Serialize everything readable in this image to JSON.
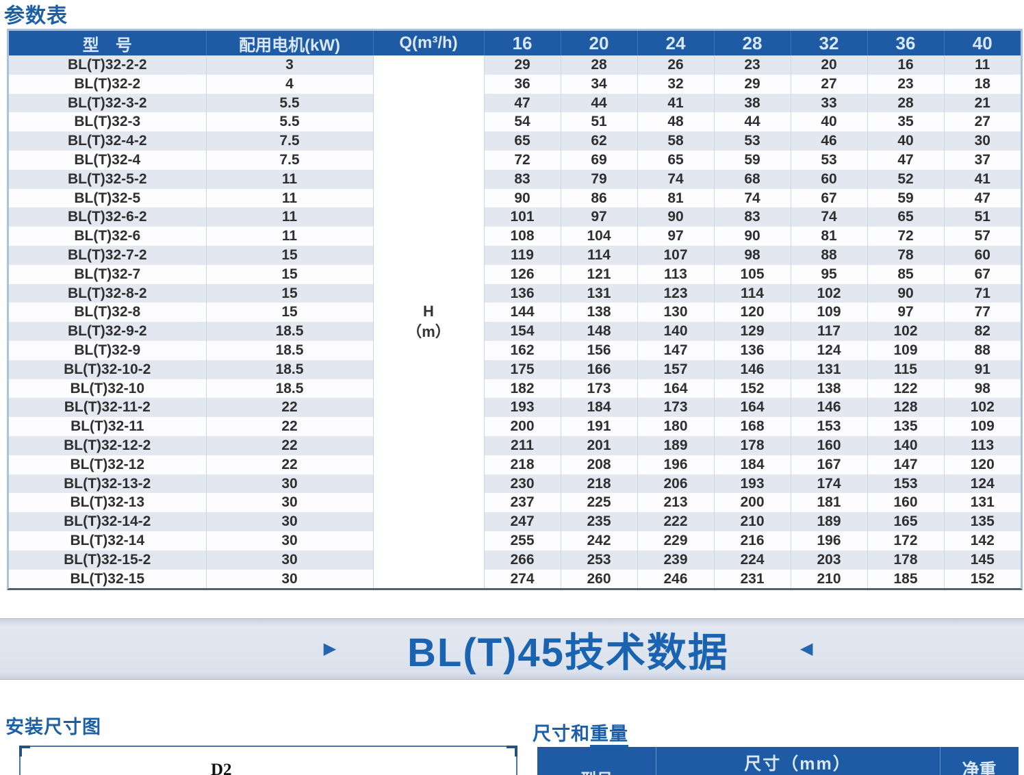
{
  "page": {
    "title": "参数表"
  },
  "colors": {
    "header_blue": "#1e5ba4",
    "title_blue": "#1c5fa6",
    "stripe_row": "#e2e7f0",
    "banner_text_blue": "#1a63b0"
  },
  "icons": {
    "right_arrow": "▶",
    "left_arrow": "◀"
  },
  "table": {
    "headers": {
      "model": "型　号",
      "motor": "配用电机(kW)",
      "flow": "Q(m³/h)"
    },
    "flow_columns": [
      "16",
      "20",
      "24",
      "28",
      "32",
      "36",
      "40"
    ],
    "head_unit": {
      "line1": "H",
      "line2": "（m）"
    },
    "rows": [
      {
        "model": "BL(T)32-2-2",
        "motor_kw": "3",
        "head_values": [
          29,
          28,
          26,
          23,
          20,
          16,
          11
        ]
      },
      {
        "model": "BL(T)32-2",
        "motor_kw": "4",
        "head_values": [
          36,
          34,
          32,
          29,
          27,
          23,
          18
        ]
      },
      {
        "model": "BL(T)32-3-2",
        "motor_kw": "5.5",
        "head_values": [
          47,
          44,
          41,
          38,
          33,
          28,
          21
        ]
      },
      {
        "model": "BL(T)32-3",
        "motor_kw": "5.5",
        "head_values": [
          54,
          51,
          48,
          44,
          40,
          35,
          27
        ]
      },
      {
        "model": "BL(T)32-4-2",
        "motor_kw": "7.5",
        "head_values": [
          65,
          62,
          58,
          53,
          46,
          40,
          30
        ]
      },
      {
        "model": "BL(T)32-4",
        "motor_kw": "7.5",
        "head_values": [
          72,
          69,
          65,
          59,
          53,
          47,
          37
        ]
      },
      {
        "model": "BL(T)32-5-2",
        "motor_kw": "11",
        "head_values": [
          83,
          79,
          74,
          68,
          60,
          52,
          41
        ]
      },
      {
        "model": "BL(T)32-5",
        "motor_kw": "11",
        "head_values": [
          90,
          86,
          81,
          74,
          67,
          59,
          47
        ]
      },
      {
        "model": "BL(T)32-6-2",
        "motor_kw": "11",
        "head_values": [
          101,
          97,
          90,
          83,
          74,
          65,
          51
        ]
      },
      {
        "model": "BL(T)32-6",
        "motor_kw": "11",
        "head_values": [
          108,
          104,
          97,
          90,
          81,
          72,
          57
        ]
      },
      {
        "model": "BL(T)32-7-2",
        "motor_kw": "15",
        "head_values": [
          119,
          114,
          107,
          98,
          88,
          78,
          60
        ]
      },
      {
        "model": "BL(T)32-7",
        "motor_kw": "15",
        "head_values": [
          126,
          121,
          113,
          105,
          95,
          85,
          67
        ]
      },
      {
        "model": "BL(T)32-8-2",
        "motor_kw": "15",
        "head_values": [
          136,
          131,
          123,
          114,
          102,
          90,
          71
        ]
      },
      {
        "model": "BL(T)32-8",
        "motor_kw": "15",
        "head_values": [
          144,
          138,
          130,
          120,
          109,
          97,
          77
        ]
      },
      {
        "model": "BL(T)32-9-2",
        "motor_kw": "18.5",
        "head_values": [
          154,
          148,
          140,
          129,
          117,
          102,
          82
        ]
      },
      {
        "model": "BL(T)32-9",
        "motor_kw": "18.5",
        "head_values": [
          162,
          156,
          147,
          136,
          124,
          109,
          88
        ]
      },
      {
        "model": "BL(T)32-10-2",
        "motor_kw": "18.5",
        "head_values": [
          175,
          166,
          157,
          146,
          131,
          115,
          91
        ]
      },
      {
        "model": "BL(T)32-10",
        "motor_kw": "18.5",
        "head_values": [
          182,
          173,
          164,
          152,
          138,
          122,
          98
        ]
      },
      {
        "model": "BL(T)32-11-2",
        "motor_kw": "22",
        "head_values": [
          193,
          184,
          173,
          164,
          146,
          128,
          102
        ]
      },
      {
        "model": "BL(T)32-11",
        "motor_kw": "22",
        "head_values": [
          200,
          191,
          180,
          168,
          153,
          135,
          109
        ]
      },
      {
        "model": "BL(T)32-12-2",
        "motor_kw": "22",
        "head_values": [
          211,
          201,
          189,
          178,
          160,
          140,
          113
        ]
      },
      {
        "model": "BL(T)32-12",
        "motor_kw": "22",
        "head_values": [
          218,
          208,
          196,
          184,
          167,
          147,
          120
        ]
      },
      {
        "model": "BL(T)32-13-2",
        "motor_kw": "30",
        "head_values": [
          230,
          218,
          206,
          193,
          174,
          153,
          124
        ]
      },
      {
        "model": "BL(T)32-13",
        "motor_kw": "30",
        "head_values": [
          237,
          225,
          213,
          200,
          181,
          160,
          131
        ]
      },
      {
        "model": "BL(T)32-14-2",
        "motor_kw": "30",
        "head_values": [
          247,
          235,
          222,
          210,
          189,
          165,
          135
        ]
      },
      {
        "model": "BL(T)32-14",
        "motor_kw": "30",
        "head_values": [
          255,
          242,
          229,
          216,
          196,
          172,
          142
        ]
      },
      {
        "model": "BL(T)32-15-2",
        "motor_kw": "30",
        "head_values": [
          266,
          253,
          239,
          224,
          203,
          178,
          145
        ]
      },
      {
        "model": "BL(T)32-15",
        "motor_kw": "30",
        "head_values": [
          274,
          260,
          246,
          231,
          210,
          185,
          152
        ]
      }
    ]
  },
  "banner": {
    "title": "BL(T)45技术数据"
  },
  "sections": {
    "installation": {
      "title": "安装尺寸图",
      "diagram_label": "D2"
    },
    "dimensions": {
      "title_prefix": "尺寸和",
      "title_underlined": "重量",
      "table_headers": {
        "model": "型号",
        "size": "尺寸（mm）",
        "weight": "净重"
      }
    }
  }
}
